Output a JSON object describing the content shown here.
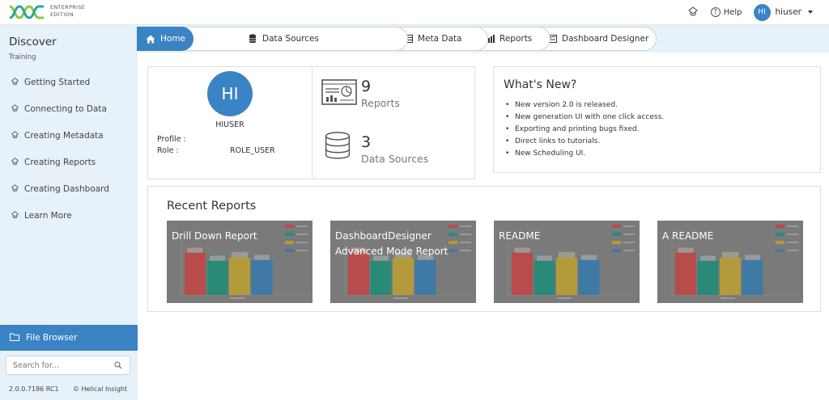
{
  "header": {
    "edition_line1": "ENTERPRISE",
    "edition_line2": "EDITION",
    "help_label": "Help",
    "user_initials": "HI",
    "user_name": "hiuser"
  },
  "sidebar": {
    "title": "Discover",
    "subtitle": "Training",
    "items": [
      {
        "label": "Getting Started"
      },
      {
        "label": "Connecting to Data"
      },
      {
        "label": "Creating Metadata"
      },
      {
        "label": "Creating Reports"
      },
      {
        "label": "Creating Dashboard"
      },
      {
        "label": "Learn More"
      }
    ],
    "file_browser_label": "File Browser",
    "search_placeholder": "Search for...",
    "version": "2.0.0.7186 RC1",
    "copyright": "© Helical Insight"
  },
  "breadcrumbs": [
    {
      "label": "Home"
    },
    {
      "label": "Data Sources"
    },
    {
      "label": "Meta Data"
    },
    {
      "label": "Reports"
    },
    {
      "label": "Dashboard Designer"
    }
  ],
  "profile": {
    "initials": "HI",
    "name": "HIUSER",
    "profile_label": "Profile :",
    "role_label": "Role :",
    "role_value": "ROLE_USER"
  },
  "stats": {
    "reports_count": "9",
    "reports_label": "Reports",
    "datasources_count": "3",
    "datasources_label": "Data Sources"
  },
  "whats_new": {
    "title": "What's New?",
    "items": [
      "New version 2.0 is released.",
      "New generation UI with one click access.",
      "Exporting and printing bugs fixed.",
      "Direct links to tutorials.",
      "New Scheduling UI."
    ]
  },
  "recent_reports": {
    "title": "Recent Reports",
    "cards": [
      {
        "title_line1": "Drill Down Report",
        "title_line2": ""
      },
      {
        "title_line1": "DashboardDesigner",
        "title_line2": "Advanced Mode Report"
      },
      {
        "title_line1": "README",
        "title_line2": ""
      },
      {
        "title_line1": "A README",
        "title_line2": ""
      }
    ]
  },
  "colors": {
    "accent": "#3a83c5",
    "sidebar_bg": "#e6f1f9",
    "thumb_bg": "#7a7a7a",
    "bar_red": "#b84c4a",
    "bar_green": "#2a8a78",
    "bar_yellow": "#b39a3a",
    "bar_blue": "#3f7aa5"
  }
}
